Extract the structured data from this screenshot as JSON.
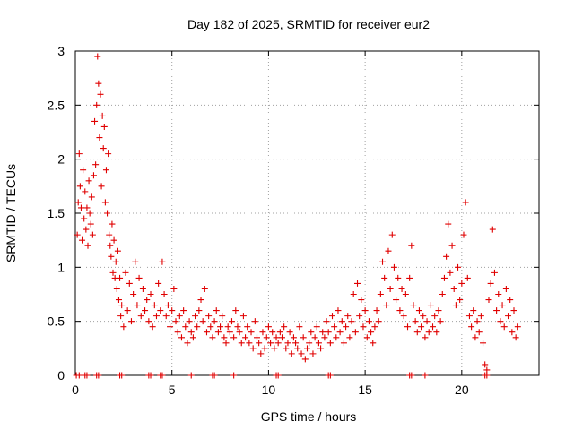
{
  "chart_data": {
    "type": "scatter",
    "title": "Day 182 of 2025, SRMTID for receiver eur2",
    "xlabel": "GPS time / hours",
    "ylabel": "SRMTID / TECUs",
    "xlim": [
      0,
      24
    ],
    "ylim": [
      0,
      3
    ],
    "xticks": [
      0,
      5,
      10,
      15,
      20
    ],
    "xtick_labels": [
      "0",
      "5",
      "10",
      "15",
      "20"
    ],
    "yticks": [
      0,
      0.5,
      1,
      1.5,
      2,
      2.5,
      3
    ],
    "ytick_labels": [
      "0",
      "0.5",
      "1",
      "1.5",
      "2",
      "2.5",
      "3"
    ],
    "grid": true,
    "marker": "+",
    "color": "#e00000",
    "series": [
      {
        "name": "SRMTID",
        "points": [
          [
            0.1,
            1.3
          ],
          [
            0.15,
            1.6
          ],
          [
            0.2,
            2.05
          ],
          [
            0.25,
            1.75
          ],
          [
            0.3,
            1.55
          ],
          [
            0.35,
            1.25
          ],
          [
            0.4,
            1.9
          ],
          [
            0.45,
            1.45
          ],
          [
            0.5,
            1.7
          ],
          [
            0.55,
            1.35
          ],
          [
            0.6,
            1.55
          ],
          [
            0.65,
            1.2
          ],
          [
            0.7,
            1.8
          ],
          [
            0.75,
            1.5
          ],
          [
            0.8,
            1.4
          ],
          [
            0.85,
            1.65
          ],
          [
            0.9,
            1.3
          ],
          [
            0.95,
            1.85
          ],
          [
            1.0,
            2.35
          ],
          [
            1.05,
            1.95
          ],
          [
            1.1,
            2.5
          ],
          [
            1.15,
            2.95
          ],
          [
            1.2,
            2.7
          ],
          [
            1.25,
            2.2
          ],
          [
            1.3,
            2.6
          ],
          [
            1.35,
            1.75
          ],
          [
            1.4,
            2.4
          ],
          [
            1.45,
            2.1
          ],
          [
            1.5,
            2.3
          ],
          [
            1.55,
            1.6
          ],
          [
            1.6,
            1.9
          ],
          [
            1.65,
            1.5
          ],
          [
            1.7,
            2.05
          ],
          [
            1.75,
            1.3
          ],
          [
            1.8,
            1.2
          ],
          [
            1.85,
            1.1
          ],
          [
            1.9,
            1.4
          ],
          [
            1.95,
            0.95
          ],
          [
            2.0,
            1.25
          ],
          [
            2.05,
            0.9
          ],
          [
            2.1,
            1.05
          ],
          [
            2.15,
            0.8
          ],
          [
            2.2,
            1.15
          ],
          [
            2.25,
            0.7
          ],
          [
            2.3,
            0.9
          ],
          [
            2.35,
            0.55
          ],
          [
            2.4,
            0.65
          ],
          [
            2.5,
            0.45
          ],
          [
            2.6,
            0.95
          ],
          [
            2.7,
            0.6
          ],
          [
            2.8,
            0.85
          ],
          [
            2.9,
            0.5
          ],
          [
            3.0,
            0.75
          ],
          [
            3.1,
            1.05
          ],
          [
            3.2,
            0.65
          ],
          [
            3.3,
            0.9
          ],
          [
            3.4,
            0.55
          ],
          [
            3.5,
            0.8
          ],
          [
            3.6,
            0.6
          ],
          [
            3.7,
            0.7
          ],
          [
            3.8,
            0.5
          ],
          [
            3.9,
            0.75
          ],
          [
            4.0,
            0.45
          ],
          [
            4.1,
            0.65
          ],
          [
            4.2,
            0.55
          ],
          [
            4.3,
            0.85
          ],
          [
            4.4,
            0.6
          ],
          [
            4.5,
            1.05
          ],
          [
            4.6,
            0.75
          ],
          [
            4.7,
            0.55
          ],
          [
            4.8,
            0.65
          ],
          [
            4.9,
            0.45
          ],
          [
            5.0,
            0.6
          ],
          [
            5.1,
            0.8
          ],
          [
            5.2,
            0.5
          ],
          [
            5.3,
            0.4
          ],
          [
            5.4,
            0.55
          ],
          [
            5.5,
            0.35
          ],
          [
            5.6,
            0.6
          ],
          [
            5.7,
            0.45
          ],
          [
            5.8,
            0.3
          ],
          [
            5.9,
            0.5
          ],
          [
            6.0,
            0.4
          ],
          [
            6.1,
            0.35
          ],
          [
            6.2,
            0.55
          ],
          [
            6.3,
            0.45
          ],
          [
            6.4,
            0.6
          ],
          [
            6.5,
            0.7
          ],
          [
            6.6,
            0.5
          ],
          [
            6.7,
            0.8
          ],
          [
            6.8,
            0.4
          ],
          [
            6.9,
            0.55
          ],
          [
            7.0,
            0.45
          ],
          [
            7.1,
            0.35
          ],
          [
            7.2,
            0.5
          ],
          [
            7.3,
            0.6
          ],
          [
            7.4,
            0.4
          ],
          [
            7.5,
            0.45
          ],
          [
            7.6,
            0.55
          ],
          [
            7.7,
            0.35
          ],
          [
            7.8,
            0.3
          ],
          [
            7.9,
            0.45
          ],
          [
            8.0,
            0.4
          ],
          [
            8.1,
            0.5
          ],
          [
            8.2,
            0.35
          ],
          [
            8.3,
            0.6
          ],
          [
            8.4,
            0.45
          ],
          [
            8.5,
            0.4
          ],
          [
            8.6,
            0.3
          ],
          [
            8.7,
            0.55
          ],
          [
            8.8,
            0.35
          ],
          [
            8.9,
            0.45
          ],
          [
            9.0,
            0.3
          ],
          [
            9.1,
            0.4
          ],
          [
            9.2,
            0.25
          ],
          [
            9.3,
            0.5
          ],
          [
            9.4,
            0.35
          ],
          [
            9.5,
            0.3
          ],
          [
            9.6,
            0.2
          ],
          [
            9.7,
            0.4
          ],
          [
            9.8,
            0.25
          ],
          [
            9.9,
            0.35
          ],
          [
            10.0,
            0.45
          ],
          [
            10.1,
            0.3
          ],
          [
            10.2,
            0.4
          ],
          [
            10.3,
            0.25
          ],
          [
            10.4,
            0.35
          ],
          [
            10.5,
            0.3
          ],
          [
            10.6,
            0.4
          ],
          [
            10.7,
            0.35
          ],
          [
            10.8,
            0.45
          ],
          [
            10.9,
            0.25
          ],
          [
            11.0,
            0.3
          ],
          [
            11.1,
            0.4
          ],
          [
            11.2,
            0.2
          ],
          [
            11.3,
            0.35
          ],
          [
            11.4,
            0.3
          ],
          [
            11.5,
            0.25
          ],
          [
            11.6,
            0.45
          ],
          [
            11.7,
            0.2
          ],
          [
            11.8,
            0.35
          ],
          [
            11.9,
            0.15
          ],
          [
            12.0,
            0.25
          ],
          [
            12.1,
            0.3
          ],
          [
            12.2,
            0.4
          ],
          [
            12.3,
            0.2
          ],
          [
            12.4,
            0.35
          ],
          [
            12.5,
            0.45
          ],
          [
            12.6,
            0.3
          ],
          [
            12.7,
            0.25
          ],
          [
            12.8,
            0.4
          ],
          [
            12.9,
            0.35
          ],
          [
            13.0,
            0.5
          ],
          [
            13.1,
            0.4
          ],
          [
            13.2,
            0.3
          ],
          [
            13.3,
            0.55
          ],
          [
            13.4,
            0.45
          ],
          [
            13.5,
            0.35
          ],
          [
            13.6,
            0.6
          ],
          [
            13.7,
            0.4
          ],
          [
            13.8,
            0.5
          ],
          [
            13.9,
            0.3
          ],
          [
            14.0,
            0.45
          ],
          [
            14.1,
            0.55
          ],
          [
            14.2,
            0.35
          ],
          [
            14.3,
            0.5
          ],
          [
            14.4,
            0.75
          ],
          [
            14.5,
            0.4
          ],
          [
            14.6,
            0.85
          ],
          [
            14.7,
            0.55
          ],
          [
            14.8,
            0.7
          ],
          [
            14.9,
            0.45
          ],
          [
            15.0,
            0.6
          ],
          [
            15.1,
            0.35
          ],
          [
            15.2,
            0.5
          ],
          [
            15.3,
            0.4
          ],
          [
            15.4,
            0.3
          ],
          [
            15.5,
            0.45
          ],
          [
            15.6,
            0.6
          ],
          [
            15.7,
            0.5
          ],
          [
            15.8,
            0.75
          ],
          [
            15.9,
            1.05
          ],
          [
            16.0,
            0.9
          ],
          [
            16.1,
            0.65
          ],
          [
            16.2,
            1.15
          ],
          [
            16.3,
            0.8
          ],
          [
            16.4,
            1.3
          ],
          [
            16.5,
            1.0
          ],
          [
            16.6,
            0.7
          ],
          [
            16.7,
            0.9
          ],
          [
            16.8,
            0.6
          ],
          [
            16.9,
            0.8
          ],
          [
            17.0,
            0.55
          ],
          [
            17.1,
            0.75
          ],
          [
            17.2,
            0.45
          ],
          [
            17.3,
            0.9
          ],
          [
            17.4,
            1.2
          ],
          [
            17.5,
            0.65
          ],
          [
            17.6,
            0.5
          ],
          [
            17.7,
            0.4
          ],
          [
            17.8,
            0.6
          ],
          [
            17.9,
            0.45
          ],
          [
            18.0,
            0.55
          ],
          [
            18.1,
            0.35
          ],
          [
            18.2,
            0.5
          ],
          [
            18.3,
            0.4
          ],
          [
            18.4,
            0.65
          ],
          [
            18.5,
            0.45
          ],
          [
            18.6,
            0.55
          ],
          [
            18.7,
            0.4
          ],
          [
            18.8,
            0.6
          ],
          [
            18.9,
            0.5
          ],
          [
            19.0,
            0.75
          ],
          [
            19.1,
            0.9
          ],
          [
            19.2,
            1.1
          ],
          [
            19.3,
            1.4
          ],
          [
            19.4,
            0.95
          ],
          [
            19.5,
            1.2
          ],
          [
            19.6,
            0.8
          ],
          [
            19.7,
            0.65
          ],
          [
            19.8,
            1.0
          ],
          [
            19.9,
            0.7
          ],
          [
            20.0,
            0.85
          ],
          [
            20.1,
            1.3
          ],
          [
            20.2,
            1.6
          ],
          [
            20.3,
            0.9
          ],
          [
            20.4,
            0.55
          ],
          [
            20.5,
            0.45
          ],
          [
            20.6,
            0.6
          ],
          [
            20.7,
            0.35
          ],
          [
            20.8,
            0.5
          ],
          [
            20.9,
            0.4
          ],
          [
            21.0,
            0.55
          ],
          [
            21.1,
            0.3
          ],
          [
            21.2,
            0.1
          ],
          [
            21.3,
            0.05
          ],
          [
            21.4,
            0.7
          ],
          [
            21.5,
            0.85
          ],
          [
            21.6,
            1.35
          ],
          [
            21.7,
            0.95
          ],
          [
            21.8,
            0.6
          ],
          [
            21.9,
            0.75
          ],
          [
            22.0,
            0.5
          ],
          [
            22.1,
            0.65
          ],
          [
            22.2,
            0.45
          ],
          [
            22.3,
            0.8
          ],
          [
            22.4,
            0.55
          ],
          [
            22.5,
            0.7
          ],
          [
            22.6,
            0.4
          ],
          [
            22.7,
            0.6
          ],
          [
            22.8,
            0.35
          ],
          [
            22.9,
            0.45
          ],
          [
            0.05,
            0.0
          ],
          [
            0.2,
            0.0
          ],
          [
            0.5,
            0.0
          ],
          [
            0.6,
            0.0
          ],
          [
            1.1,
            0.0
          ],
          [
            1.2,
            0.0
          ],
          [
            2.3,
            0.0
          ],
          [
            2.4,
            0.0
          ],
          [
            3.8,
            0.0
          ],
          [
            3.9,
            0.0
          ],
          [
            4.4,
            0.0
          ],
          [
            4.5,
            0.0
          ],
          [
            6.0,
            0.0
          ],
          [
            7.1,
            0.0
          ],
          [
            7.2,
            0.0
          ],
          [
            8.2,
            0.0
          ],
          [
            10.4,
            0.0
          ],
          [
            10.5,
            0.0
          ],
          [
            13.1,
            0.0
          ],
          [
            13.2,
            0.0
          ],
          [
            17.3,
            0.0
          ],
          [
            17.4,
            0.0
          ],
          [
            18.1,
            0.0
          ],
          [
            21.2,
            0.0
          ],
          [
            21.3,
            0.0
          ]
        ]
      }
    ]
  }
}
